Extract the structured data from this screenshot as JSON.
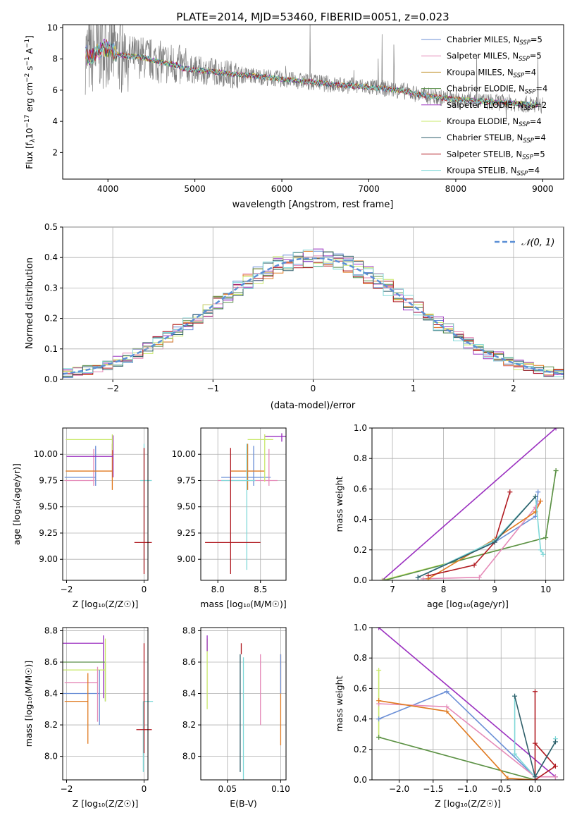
{
  "title": "PLATE=2014, MJD=53460, FIBERID=0051, z=0.023",
  "colors": {
    "chabrier_miles": "#6b8fd6",
    "salpeter_miles": "#e58ab8",
    "kroupa_miles": "#c49a3a",
    "chabrier_elodie": "#5a8f4a",
    "salpeter_elodie": "#9b30c0",
    "kroupa_elodie": "#c8e86a",
    "chabrier_stelib": "#2f5f6a",
    "salpeter_stelib": "#b01a20",
    "kroupa_stelib": "#7fd8d8",
    "orange": "#e07a20",
    "data": "#7f7f7f",
    "gauss": "#5b8fd6"
  },
  "chart_data": [
    {
      "id": "spectrum",
      "type": "line",
      "title": "PLATE=2014, MJD=53460, FIBERID=0051, z=0.023",
      "xlabel": "wavelength [Angstrom, rest frame]",
      "ylabel_main": "Flux [f",
      "ylabel_sub": "λ",
      "ylabel_rest": "10",
      "ylabel_exp": "−17",
      "ylabel_units": " erg cm",
      "ylabel_exp2": "−2",
      "ylabel_s": " s",
      "ylabel_exp3": "−1",
      "ylabel_end": " A",
      "ylabel_exp4": "−1",
      "ylabel_close": "]",
      "xlim": [
        3480,
        9240
      ],
      "ylim": [
        0.3,
        10.2
      ],
      "xticks": [
        "4000",
        "5000",
        "6000",
        "7000",
        "8000",
        "9000"
      ],
      "xtick_values": [
        4000,
        5000,
        6000,
        7000,
        8000,
        9000
      ],
      "yticks": [
        "2",
        "4",
        "6",
        "8",
        "10"
      ],
      "ytick_values": [
        2,
        4,
        6,
        8,
        10
      ],
      "continuum": {
        "x": [
          3740,
          3800,
          3900,
          4000,
          4100,
          4200,
          4400,
          4600,
          4800,
          4860,
          5000,
          5200,
          5400,
          5600,
          5800,
          6000,
          6200,
          6400,
          6600,
          6800,
          7000,
          7200,
          7400,
          7600,
          7800,
          8000,
          8200,
          8400,
          8600,
          8800,
          9000
        ],
        "y": [
          8.3,
          8.1,
          8.6,
          8.7,
          8.3,
          8.2,
          8.1,
          7.8,
          7.6,
          7.4,
          7.3,
          7.2,
          7.05,
          6.95,
          6.85,
          6.7,
          6.6,
          6.5,
          6.35,
          6.3,
          6.2,
          6.1,
          5.95,
          5.7,
          5.55,
          5.4,
          5.35,
          5.25,
          5.2,
          5.1,
          5.05
        ]
      },
      "legend": [
        {
          "label": "Chabrier MILES, N",
          "sub": "SSP",
          "value": "=5",
          "color": "#6b8fd6"
        },
        {
          "label": "Salpeter MILES, N",
          "sub": "SSP",
          "value": "=5",
          "color": "#e58ab8"
        },
        {
          "label": "Kroupa MILES, N",
          "sub": "SSP",
          "value": "=4",
          "color": "#c49a3a"
        },
        {
          "label": "Chabrier ELODIE, N",
          "sub": "SSP",
          "value": "=4",
          "color": "#5a8f4a"
        },
        {
          "label": "Salpeter ELODIE, N",
          "sub": "SSP",
          "value": "=2",
          "color": "#9b30c0"
        },
        {
          "label": "Kroupa ELODIE, N",
          "sub": "SSP",
          "value": "=4",
          "color": "#c8e86a"
        },
        {
          "label": "Chabrier STELIB, N",
          "sub": "SSP",
          "value": "=4",
          "color": "#2f5f6a"
        },
        {
          "label": "Salpeter STELIB, N",
          "sub": "SSP",
          "value": "=5",
          "color": "#b01a20"
        },
        {
          "label": "Kroupa STELIB, N",
          "sub": "SSP",
          "value": "=4",
          "color": "#7fd8d8"
        }
      ],
      "legend_placement": "upper right"
    },
    {
      "id": "residuals",
      "type": "histogram",
      "xlabel": "(data-model)/error",
      "ylabel": "Normed distribution",
      "xlim": [
        -2.5,
        2.5
      ],
      "ylim": [
        0,
        0.5
      ],
      "xticks": [
        "−2",
        "−1",
        "0",
        "1",
        "2"
      ],
      "xtick_values": [
        -2,
        -1,
        0,
        1,
        2
      ],
      "yticks": [
        "0.0",
        "0.1",
        "0.2",
        "0.3",
        "0.4",
        "0.5"
      ],
      "ytick_values": [
        0,
        0.1,
        0.2,
        0.3,
        0.4,
        0.5
      ],
      "grid": true,
      "legend": [
        {
          "label": "𝒩(0, 1)",
          "color": "#5b8fd6",
          "style": "dashed"
        }
      ],
      "legend_placement": "upper right",
      "bin_width": 0.1
    },
    {
      "id": "age-vs-Z",
      "type": "errorbar",
      "xlabel": "Z [log₁₀(Z/Z☉)]",
      "ylabel": "age  [log₁₀(age/yr)]",
      "xlim": [
        -2.1,
        0.1
      ],
      "ylim": [
        8.8,
        10.25
      ],
      "xticks": [
        "−2",
        "0"
      ],
      "xtick_values": [
        -2,
        0
      ],
      "yticks": [
        "9.00",
        "9.25",
        "9.50",
        "9.75",
        "10.00"
      ],
      "ytick_values": [
        9.0,
        9.25,
        9.5,
        9.75,
        10.0
      ],
      "grid": true,
      "points": [
        {
          "x": -1.25,
          "y": 9.78,
          "xerr": [
            0.8,
            0.0
          ],
          "yerr": [
            0.08,
            0.3
          ],
          "color": "#6b8fd6"
        },
        {
          "x": -1.3,
          "y": 9.75,
          "xerr": [
            0.75,
            0.0
          ],
          "yerr": [
            0.05,
            0.3
          ],
          "color": "#e58ab8"
        },
        {
          "x": -0.82,
          "y": 9.84,
          "xerr": [
            1.2,
            0.0
          ],
          "yerr": [
            0.18,
            0.26
          ],
          "color": "#e07a20"
        },
        {
          "x": -0.8,
          "y": 9.98,
          "xerr": [
            1.2,
            0.0
          ],
          "yerr": [
            0.2,
            0.2
          ],
          "color": "#9b30c0"
        },
        {
          "x": -0.82,
          "y": 10.14,
          "xerr": [
            1.2,
            0.0
          ],
          "yerr": [
            0.1,
            0.05
          ],
          "color": "#c8e86a"
        },
        {
          "x": 0.0,
          "y": 9.75,
          "xerr": [
            0.1,
            0.2
          ],
          "yerr": [
            0.85,
            0.35
          ],
          "color": "#7fd8d8"
        },
        {
          "x": 0.0,
          "y": 9.16,
          "xerr": [
            0.25,
            0.2
          ],
          "yerr": [
            0.3,
            0.9
          ],
          "color": "#b01a20"
        }
      ]
    },
    {
      "id": "age-vs-mass",
      "type": "errorbar",
      "xlabel": "mass [log₁₀(M/M☉)]",
      "xlim": [
        7.8,
        8.8
      ],
      "ylim": [
        8.8,
        10.25
      ],
      "xticks": [
        "8.0",
        "8.5"
      ],
      "xtick_values": [
        8.0,
        8.5
      ],
      "yticks": [
        "9.00",
        "9.25",
        "9.50",
        "9.75",
        "10.00"
      ],
      "ytick_values": [
        9.0,
        9.25,
        9.5,
        9.75,
        10.0
      ],
      "grid": true,
      "points": [
        {
          "x": 8.42,
          "y": 9.78,
          "xerr": [
            0.38,
            0.2
          ],
          "yerr": [
            0.08,
            0.3
          ],
          "color": "#6b8fd6"
        },
        {
          "x": 8.6,
          "y": 9.75,
          "xerr": [
            0.6,
            0.1
          ],
          "yerr": [
            0.05,
            0.3
          ],
          "color": "#e58ab8"
        },
        {
          "x": 8.35,
          "y": 9.84,
          "xerr": [
            0.2,
            0.2
          ],
          "yerr": [
            0.18,
            0.26
          ],
          "color": "#e07a20"
        },
        {
          "x": 8.75,
          "y": 10.17,
          "xerr": [
            0.2,
            0.05
          ],
          "yerr": [
            0.05,
            0.03
          ],
          "color": "#9b30c0"
        },
        {
          "x": 8.55,
          "y": 10.14,
          "xerr": [
            0.2,
            0.1
          ],
          "yerr": [
            0.4,
            0.05
          ],
          "color": "#c8e86a"
        },
        {
          "x": 8.34,
          "y": 9.75,
          "xerr": [
            0.3,
            0.1
          ],
          "yerr": [
            0.85,
            0.35
          ],
          "color": "#7fd8d8"
        },
        {
          "x": 8.15,
          "y": 9.16,
          "xerr": [
            0.3,
            0.35
          ],
          "yerr": [
            0.3,
            0.9
          ],
          "color": "#b01a20"
        }
      ]
    },
    {
      "id": "weight-vs-age",
      "type": "line",
      "xlabel": "age  [log₁₀(age/yr)]",
      "ylabel": "mass weight",
      "xlim": [
        6.6,
        10.35
      ],
      "ylim": [
        0,
        1
      ],
      "xticks": [
        "7",
        "8",
        "9",
        "10"
      ],
      "xtick_values": [
        7,
        8,
        9,
        10
      ],
      "yticks": [
        "0.0",
        "0.2",
        "0.4",
        "0.6",
        "0.8",
        "1.0"
      ],
      "ytick_values": [
        0,
        0.2,
        0.4,
        0.6,
        0.8,
        1.0
      ],
      "grid": true,
      "series": [
        {
          "x": [
            6.8,
            10.2
          ],
          "y": [
            0.0,
            1.0
          ],
          "color": "#9b30c0"
        },
        {
          "x": [
            6.8,
            10.0,
            10.2
          ],
          "y": [
            0.0,
            0.28,
            0.72
          ],
          "color": "#c8e86a"
        },
        {
          "x": [
            6.85,
            10.0,
            10.2
          ],
          "y": [
            0.0,
            0.28,
            0.72
          ],
          "color": "#5a8f4a"
        },
        {
          "x": [
            7.5,
            9.0,
            9.8,
            9.85
          ],
          "y": [
            0.02,
            0.25,
            0.42,
            0.58
          ],
          "color": "#6b8fd6"
        },
        {
          "x": [
            7.6,
            8.7,
            9.8,
            9.9
          ],
          "y": [
            0.01,
            0.02,
            0.48,
            0.52
          ],
          "color": "#e58ab8"
        },
        {
          "x": [
            7.7,
            9.0,
            9.8,
            9.9
          ],
          "y": [
            0.01,
            0.27,
            0.45,
            0.52
          ],
          "color": "#e07a20"
        },
        {
          "x": [
            7.7,
            8.6,
            9.0,
            9.3
          ],
          "y": [
            0.03,
            0.1,
            0.25,
            0.58
          ],
          "color": "#b01a20"
        },
        {
          "x": [
            7.5,
            9.0,
            9.8,
            9.9,
            9.95
          ],
          "y": [
            0.02,
            0.26,
            0.55,
            0.2,
            0.17
          ],
          "color": "#7fd8d8"
        },
        {
          "x": [
            7.5,
            9.0,
            9.8
          ],
          "y": [
            0.02,
            0.25,
            0.55
          ],
          "color": "#2f5f6a"
        }
      ]
    },
    {
      "id": "mass-vs-Z",
      "type": "errorbar",
      "xlabel": "Z [log₁₀(Z/Z☉)]",
      "ylabel": "mass [log₁₀(M/M☉)]",
      "xlim": [
        -2.1,
        0.1
      ],
      "ylim": [
        7.85,
        8.82
      ],
      "xticks": [
        "−2",
        "0"
      ],
      "xtick_values": [
        -2,
        0
      ],
      "yticks": [
        "8.0",
        "8.2",
        "8.4",
        "8.6",
        "8.8"
      ],
      "ytick_values": [
        8.0,
        8.2,
        8.4,
        8.6,
        8.8
      ],
      "grid": true,
      "points": [
        {
          "x": -1.05,
          "y": 8.72,
          "xerr": [
            1.05,
            0.0
          ],
          "yerr": [
            0.35,
            0.05
          ],
          "color": "#9b30c0"
        },
        {
          "x": -1.0,
          "y": 8.6,
          "xerr": [
            1.1,
            0.0
          ],
          "yerr": [
            0.25,
            0.0
          ],
          "color": "#5a8f4a"
        },
        {
          "x": -1.0,
          "y": 8.55,
          "xerr": [
            1.1,
            0.0
          ],
          "yerr": [
            0.2,
            0.2
          ],
          "color": "#c8e86a"
        },
        {
          "x": -1.15,
          "y": 8.4,
          "xerr": [
            0.95,
            0.0
          ],
          "yerr": [
            0.2,
            0.15
          ],
          "color": "#6b8fd6"
        },
        {
          "x": -1.2,
          "y": 8.47,
          "xerr": [
            0.85,
            0.0
          ],
          "yerr": [
            0.25,
            0.1
          ],
          "color": "#e58ab8"
        },
        {
          "x": -1.45,
          "y": 8.35,
          "xerr": [
            0.6,
            0.0
          ],
          "yerr": [
            0.27,
            0.18
          ],
          "color": "#e07a20"
        },
        {
          "x": -0.02,
          "y": 8.35,
          "xerr": [
            0.0,
            0.25
          ],
          "yerr": [
            0.45,
            0.0
          ],
          "color": "#7fd8d8"
        },
        {
          "x": 0.0,
          "y": 8.17,
          "xerr": [
            0.2,
            0.2
          ],
          "yerr": [
            0.15,
            0.55
          ],
          "color": "#b01a20"
        }
      ]
    },
    {
      "id": "mass-vs-EBV",
      "type": "errorbar",
      "xlabel": "E(B-V)",
      "xlim": [
        0.025,
        0.105
      ],
      "ylim": [
        7.85,
        8.82
      ],
      "xticks": [
        "0.05",
        "0.10"
      ],
      "xtick_values": [
        0.05,
        0.1
      ],
      "yticks": [
        "8.0",
        "8.2",
        "8.4",
        "8.6",
        "8.8"
      ],
      "ytick_values": [
        8.0,
        8.2,
        8.4,
        8.6,
        8.8
      ],
      "grid": true,
      "points": [
        {
          "x": 0.031,
          "y": 8.6,
          "yerr": [
            0.3,
            0.15
          ],
          "color": "#c8e86a"
        },
        {
          "x": 0.031,
          "y": 8.72,
          "yerr": [
            0.05,
            0.05
          ],
          "color": "#9b30c0"
        },
        {
          "x": 0.062,
          "y": 8.3,
          "yerr": [
            0.4,
            0.35
          ],
          "color": "#2f5f6a"
        },
        {
          "x": 0.063,
          "y": 8.65,
          "yerr": [
            0.0,
            0.07
          ],
          "color": "#b01a20"
        },
        {
          "x": 0.065,
          "y": 8.3,
          "yerr": [
            0.45,
            0.33
          ],
          "color": "#7fd8d8"
        },
        {
          "x": 0.081,
          "y": 8.4,
          "yerr": [
            0.2,
            0.25
          ],
          "color": "#e58ab8"
        },
        {
          "x": 0.1,
          "y": 8.35,
          "yerr": [
            0.28,
            0.3
          ],
          "color": "#e07a20"
        },
        {
          "x": 0.1,
          "y": 8.5,
          "yerr": [
            0.1,
            0.15
          ],
          "color": "#6b8fd6"
        }
      ]
    },
    {
      "id": "weight-vs-Z",
      "type": "line",
      "xlabel": "Z [log₁₀(Z/Z☉)]",
      "ylabel": "mass weight",
      "xlim": [
        -2.4,
        0.42
      ],
      "ylim": [
        0,
        1
      ],
      "xticks": [
        "−2.0",
        "−1.5",
        "−1.0",
        "−0.5",
        "0.0"
      ],
      "xtick_values": [
        -2.0,
        -1.5,
        -1.0,
        -0.5,
        0.0
      ],
      "yticks": [
        "0.0",
        "0.2",
        "0.4",
        "0.6",
        "0.8",
        "1.0"
      ],
      "ytick_values": [
        0,
        0.2,
        0.4,
        0.6,
        0.8,
        1.0
      ],
      "grid": true,
      "series": [
        {
          "x": [
            -2.3,
            0.3
          ],
          "y": [
            1.0,
            0.02
          ],
          "color": "#9b30c0"
        },
        {
          "x": [
            -2.3,
            -2.3,
            0.0
          ],
          "y": [
            0.72,
            0.28,
            0.0
          ],
          "color": "#c8e86a"
        },
        {
          "x": [
            -2.3,
            0.0
          ],
          "y": [
            0.28,
            0.0
          ],
          "color": "#5a8f4a"
        },
        {
          "x": [
            -2.3,
            -1.3,
            0.0,
            0.3
          ],
          "y": [
            0.4,
            0.58,
            0.02,
            0.02
          ],
          "color": "#6b8fd6"
        },
        {
          "x": [
            -2.3,
            -1.3,
            0.0,
            0.3
          ],
          "y": [
            0.5,
            0.48,
            0.02,
            0.02
          ],
          "color": "#e58ab8"
        },
        {
          "x": [
            -2.3,
            -1.3,
            -0.4,
            0.0
          ],
          "y": [
            0.52,
            0.45,
            0.01,
            0.0
          ],
          "color": "#e07a20"
        },
        {
          "x": [
            0.0,
            0.0,
            0.3,
            0.0,
            0.0
          ],
          "y": [
            0.58,
            0.0,
            0.09,
            0.24,
            0.0
          ],
          "color": "#b01a20"
        },
        {
          "x": [
            -0.3,
            -0.3,
            0.0,
            0.3,
            0.3
          ],
          "y": [
            0.55,
            0.17,
            0.02,
            0.25,
            0.27
          ],
          "color": "#7fd8d8"
        },
        {
          "x": [
            -0.3,
            0.0,
            0.3
          ],
          "y": [
            0.55,
            0.02,
            0.25
          ],
          "color": "#2f5f6a"
        }
      ]
    }
  ]
}
